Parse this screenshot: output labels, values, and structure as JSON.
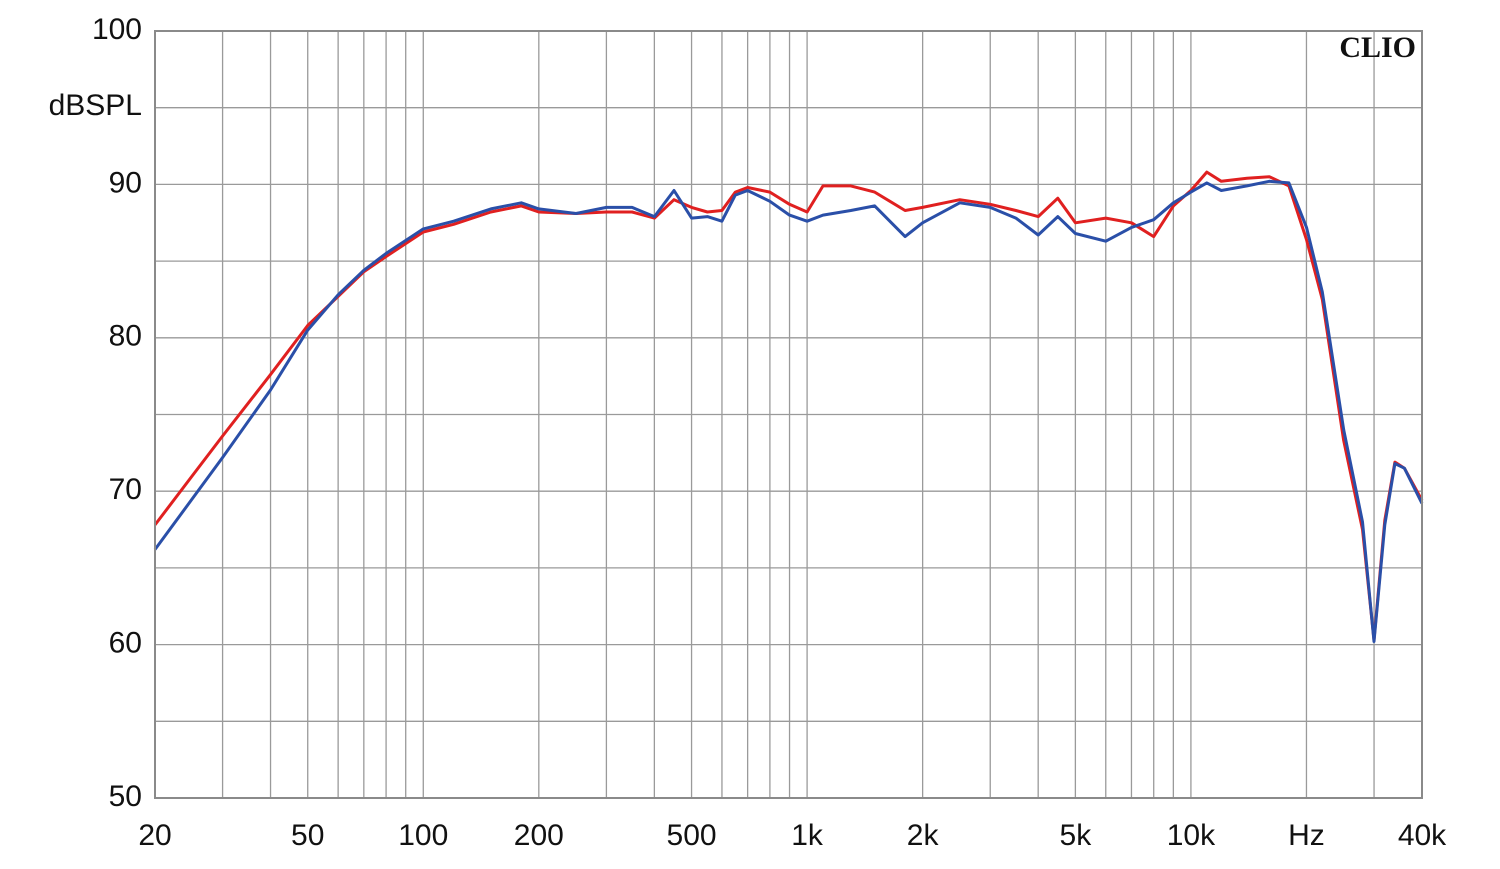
{
  "chart_data": {
    "type": "line",
    "y_label": "dBSPL",
    "annotation": "CLIO",
    "x_log": true,
    "grid": true,
    "x": [
      20,
      25,
      30,
      40,
      50,
      60,
      70,
      80,
      100,
      120,
      150,
      180,
      200,
      250,
      300,
      350,
      400,
      450,
      500,
      550,
      600,
      650,
      700,
      800,
      900,
      1000,
      1100,
      1300,
      1500,
      1800,
      2000,
      2500,
      3000,
      3500,
      4000,
      4500,
      5000,
      6000,
      7000,
      8000,
      9000,
      10000,
      11000,
      12000,
      14000,
      16000,
      18000,
      20000,
      22000,
      25000,
      28000,
      30000,
      32000,
      34000,
      36000,
      40000
    ],
    "series": [
      {
        "name": "Red",
        "color": "#e02020",
        "values": [
          67.8,
          71.0,
          73.6,
          77.6,
          80.8,
          82.7,
          84.3,
          85.3,
          86.9,
          87.4,
          88.2,
          88.6,
          88.2,
          88.1,
          88.2,
          88.2,
          87.8,
          89.0,
          88.5,
          88.2,
          88.3,
          89.5,
          89.8,
          89.5,
          88.7,
          88.2,
          89.9,
          89.9,
          89.5,
          88.3,
          88.5,
          89.0,
          88.7,
          88.3,
          87.9,
          89.1,
          87.5,
          87.8,
          87.5,
          86.6,
          88.6,
          89.6,
          90.8,
          90.2,
          90.4,
          90.5,
          89.9,
          86.4,
          82.5,
          73.3,
          67.5,
          60.3,
          68.1,
          71.9,
          71.5,
          69.4
        ]
      },
      {
        "name": "Blue",
        "color": "#2a4fa8",
        "values": [
          66.2,
          69.5,
          72.2,
          76.6,
          80.5,
          82.8,
          84.4,
          85.5,
          87.1,
          87.6,
          88.4,
          88.8,
          88.4,
          88.1,
          88.5,
          88.5,
          87.9,
          89.6,
          87.8,
          87.9,
          87.6,
          89.3,
          89.6,
          88.9,
          88.0,
          87.6,
          88.0,
          88.3,
          88.6,
          86.6,
          87.5,
          88.8,
          88.5,
          87.8,
          86.7,
          87.9,
          86.8,
          86.3,
          87.2,
          87.7,
          88.8,
          89.5,
          90.1,
          89.6,
          89.9,
          90.2,
          90.1,
          87.2,
          83.0,
          74.0,
          68.0,
          60.2,
          67.8,
          71.8,
          71.5,
          69.2
        ]
      }
    ],
    "xlim": [
      20,
      40000
    ],
    "xticks": [
      20,
      50,
      100,
      200,
      500,
      {
        "value": 1000,
        "label": "1k"
      },
      {
        "value": 2000,
        "label": "2k"
      },
      {
        "value": 5000,
        "label": "5k"
      },
      {
        "value": 10000,
        "label": "10k"
      },
      {
        "value": 20000,
        "label": "Hz"
      },
      {
        "value": 40000,
        "label": "40k"
      }
    ],
    "xminorticks": [
      30,
      40,
      60,
      70,
      80,
      90,
      300,
      400,
      600,
      700,
      800,
      900,
      3000,
      4000,
      6000,
      7000,
      8000,
      9000,
      30000
    ],
    "ylim": [
      50,
      100
    ],
    "yticks": [
      50,
      60,
      70,
      80,
      90,
      100
    ],
    "yminorticks": [
      55,
      65,
      75,
      85,
      95
    ]
  }
}
